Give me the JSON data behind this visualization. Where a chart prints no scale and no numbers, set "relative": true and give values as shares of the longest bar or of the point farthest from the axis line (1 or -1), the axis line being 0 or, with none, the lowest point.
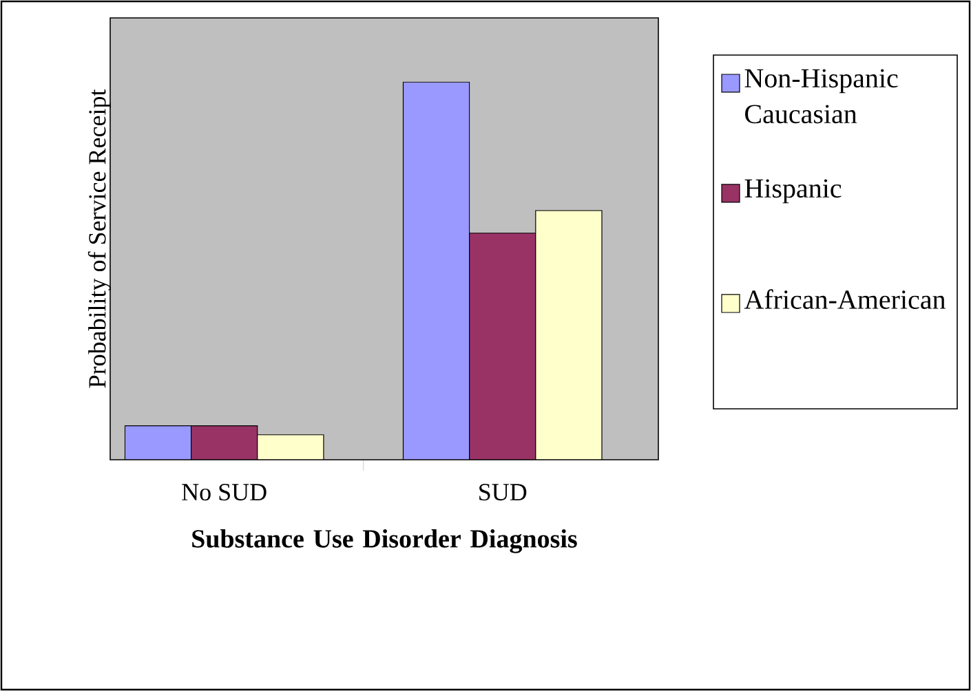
{
  "chart_data": {
    "type": "bar",
    "relative": true,
    "xlabel": "Substance Use Disorder Diagnosis",
    "ylabel": "Probability of Service Receipt",
    "categories": [
      "No SUD",
      "SUD"
    ],
    "series": [
      {
        "name": "Non-Hispanic Caucasian",
        "color": "#9999ff",
        "values": [
          0.09,
          1
        ]
      },
      {
        "name": "Hispanic",
        "color": "#993366",
        "values": [
          0.09,
          0.6
        ]
      },
      {
        "name": "African-American",
        "color": "#ffffcc",
        "values": [
          0.066,
          0.66
        ]
      }
    ],
    "legend": "right",
    "tick_labels": "x"
  }
}
